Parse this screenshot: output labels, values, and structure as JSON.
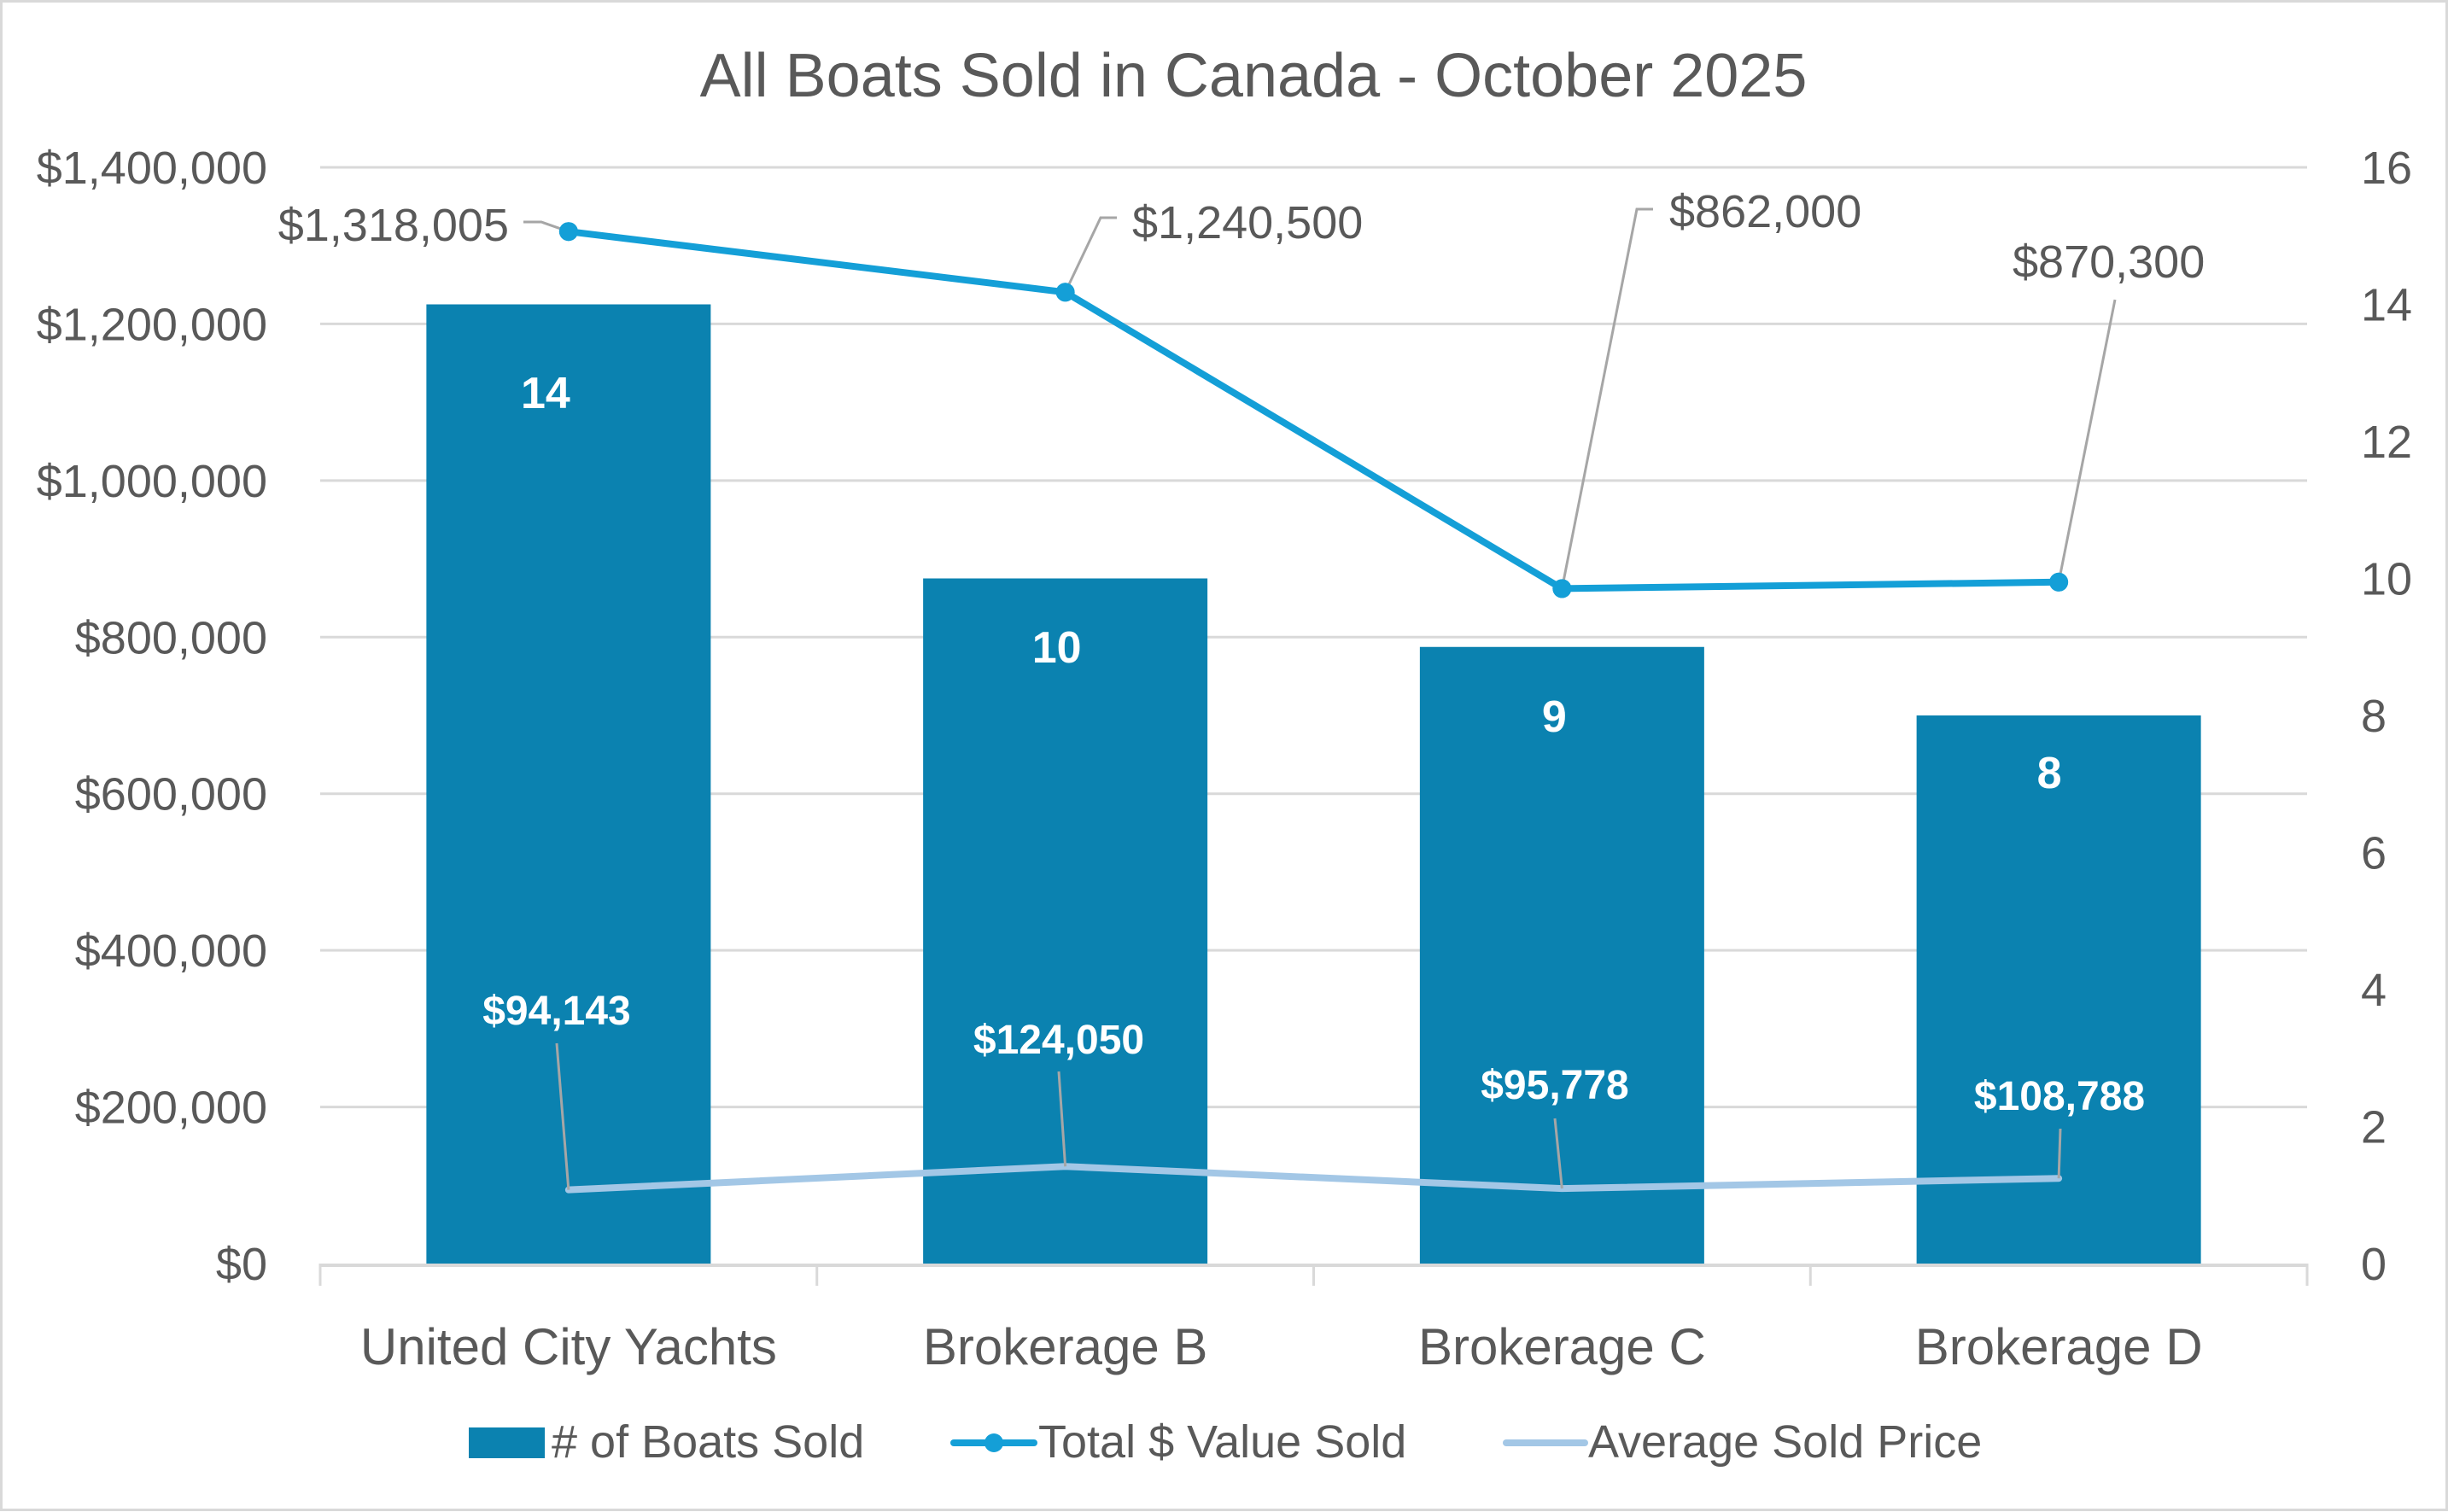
{
  "chart_data": {
    "type": "bar",
    "combo": true,
    "title": "All Boats Sold in Canada - October 2025",
    "categories": [
      "United City Yachts",
      "Brokerage B",
      "Brokerage C",
      "Brokerage D"
    ],
    "series": [
      {
        "name": "# of Boats Sold",
        "type": "bar",
        "axis": "secondary",
        "color": "#0b82b0",
        "values": [
          14,
          10,
          9,
          8
        ],
        "labels": [
          "14",
          "10",
          "9",
          "8"
        ]
      },
      {
        "name": "Total $ Value Sold",
        "type": "line",
        "markers": true,
        "axis": "primary",
        "color": "#149fd7",
        "values": [
          1318005,
          1240500,
          862000,
          870300
        ],
        "labels": [
          "$1,318,005",
          "$1,240,500",
          "$862,000",
          "$870,300"
        ]
      },
      {
        "name": "Average Sold Price",
        "type": "line",
        "markers": false,
        "axis": "primary",
        "color": "#a3c7e6",
        "values": [
          94143,
          124050,
          95778,
          108788
        ],
        "labels": [
          "$94,143",
          "$124,050",
          "$95,778",
          "$108,788"
        ]
      }
    ],
    "y_axis_primary": {
      "label": "",
      "range": [
        0,
        1400000
      ],
      "ticks": [
        0,
        200000,
        400000,
        600000,
        800000,
        1000000,
        1200000,
        1400000
      ],
      "tick_labels": [
        "$0",
        "$200,000",
        "$400,000",
        "$600,000",
        "$800,000",
        "$1,000,000",
        "$1,200,000",
        "$1,400,000"
      ]
    },
    "y_axis_secondary": {
      "label": "",
      "range": [
        0,
        16
      ],
      "ticks": [
        0,
        2,
        4,
        6,
        8,
        10,
        12,
        14,
        16
      ],
      "tick_labels": [
        "0",
        "2",
        "4",
        "6",
        "8",
        "10",
        "12",
        "14",
        "16"
      ]
    },
    "xlabel": "",
    "grid": true,
    "legend": {
      "position": "bottom",
      "entries": [
        "# of Boats Sold",
        "Total $ Value Sold",
        "Average Sold Price"
      ]
    },
    "colors": {
      "text": "#595959",
      "grid": "#d9d9d9",
      "leader": "#a6a6a6",
      "border": "#d9d9d9"
    }
  }
}
